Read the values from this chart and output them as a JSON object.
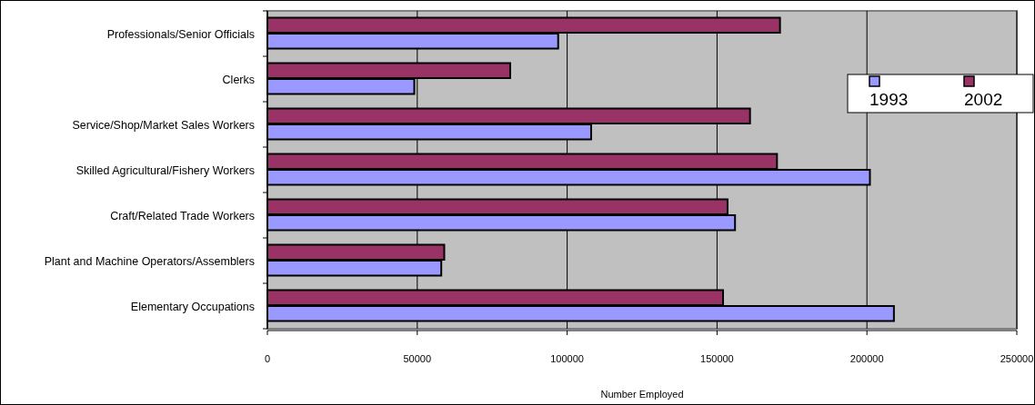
{
  "chart_data": {
    "type": "bar",
    "orientation": "horizontal",
    "xlabel": "Number Employed",
    "categories": [
      "Professionals/Senior Officials",
      "Clerks",
      "Service/Shop/Market Sales Workers",
      "Skilled Agricultural/Fishery Workers",
      "Craft/Related Trade Workers",
      "Plant and Machine Operators/Assemblers",
      "Elementary Occupations"
    ],
    "series": [
      {
        "name": "1993",
        "color": "#9999ff",
        "values": [
          97000,
          49000,
          108000,
          201000,
          156000,
          58000,
          209000
        ]
      },
      {
        "name": "2002",
        "color": "#993366",
        "values": [
          171000,
          81000,
          161000,
          170000,
          153500,
          59000,
          152000
        ]
      }
    ],
    "xlim": [
      0,
      250000
    ],
    "xticks": [
      0,
      50000,
      100000,
      150000,
      200000,
      250000
    ],
    "grid": "x",
    "legend": "top right"
  }
}
